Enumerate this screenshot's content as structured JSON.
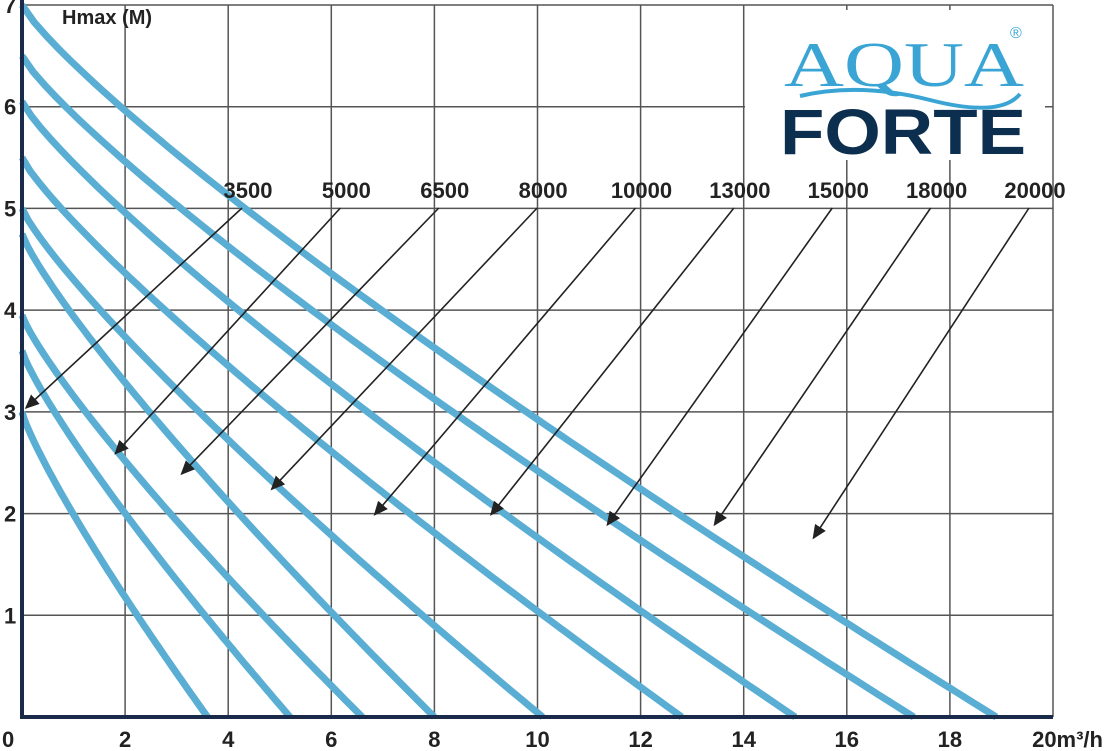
{
  "chart_data": {
    "type": "line",
    "ylabel": "Hmax (M)",
    "xlabel": "20m³/h",
    "xlim": [
      0,
      20
    ],
    "ylim": [
      0,
      7
    ],
    "x_ticks": [
      "0",
      "2",
      "4",
      "6",
      "8",
      "10",
      "12",
      "14",
      "16",
      "18"
    ],
    "y_ticks": [
      "1",
      "2",
      "3",
      "4",
      "5",
      "6",
      "7"
    ],
    "grid": true,
    "series": [
      {
        "name": "3500",
        "hmax": 3.0,
        "qmax": 3.6,
        "arrow_at": 3.0
      },
      {
        "name": "5000",
        "hmax": 3.6,
        "qmax": 5.2,
        "arrow_at": 2.55
      },
      {
        "name": "6500",
        "hmax": 3.95,
        "qmax": 6.6,
        "arrow_at": 2.35
      },
      {
        "name": "8000",
        "hmax": 4.75,
        "qmax": 8.0,
        "arrow_at": 2.2
      },
      {
        "name": "10000",
        "hmax": 5.0,
        "qmax": 10.1,
        "arrow_at": 1.95
      },
      {
        "name": "13000",
        "hmax": 5.5,
        "qmax": 12.8,
        "arrow_at": 1.95
      },
      {
        "name": "15000",
        "hmax": 6.05,
        "qmax": 15.0,
        "arrow_at": 1.85
      },
      {
        "name": "18000",
        "hmax": 6.5,
        "qmax": 17.3,
        "arrow_at": 1.85
      },
      {
        "name": "20000",
        "hmax": 7.0,
        "qmax": 18.9,
        "arrow_at": 1.72
      }
    ],
    "line_color": "#5aaed4"
  },
  "logo": {
    "top": "AQUA",
    "bottom": "FORTE",
    "mark": "®",
    "color_top": "#3aa5d5",
    "color_bottom": "#0c2f4f"
  }
}
